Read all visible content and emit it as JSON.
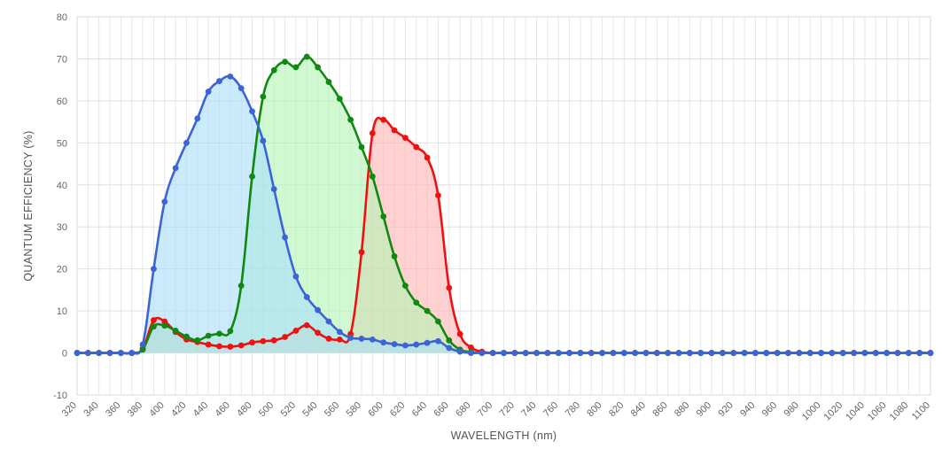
{
  "chart_data": {
    "type": "area",
    "xlabel": "WAVELENGTH (nm)",
    "ylabel": "QUANTUM EFFICIENCY (%)",
    "xlim": [
      320,
      1100
    ],
    "ylim": [
      -10,
      80
    ],
    "x_ticks": [
      320,
      340,
      360,
      380,
      400,
      420,
      440,
      460,
      480,
      500,
      520,
      540,
      560,
      580,
      600,
      620,
      640,
      660,
      680,
      700,
      720,
      740,
      760,
      780,
      800,
      820,
      840,
      860,
      880,
      900,
      920,
      940,
      960,
      980,
      1000,
      1020,
      1040,
      1060,
      1080,
      1100
    ],
    "y_ticks": [
      -10,
      0,
      10,
      20,
      30,
      40,
      50,
      60,
      70,
      80
    ],
    "grid": true,
    "series": [
      {
        "color": "#ee1111",
        "fill": "#ffb3b3",
        "points": [
          [
            320,
            0
          ],
          [
            330,
            0
          ],
          [
            340,
            0
          ],
          [
            350,
            0
          ],
          [
            360,
            0
          ],
          [
            370,
            0
          ],
          [
            380,
            1
          ],
          [
            390,
            7.8
          ],
          [
            400,
            7.5
          ],
          [
            410,
            5
          ],
          [
            420,
            3.2
          ],
          [
            430,
            2.6
          ],
          [
            440,
            2
          ],
          [
            450,
            1.6
          ],
          [
            460,
            1.5
          ],
          [
            470,
            1.8
          ],
          [
            480,
            2.5
          ],
          [
            490,
            2.8
          ],
          [
            500,
            3
          ],
          [
            510,
            3.8
          ],
          [
            520,
            5.3
          ],
          [
            530,
            6.6
          ],
          [
            540,
            4.8
          ],
          [
            550,
            3.4
          ],
          [
            560,
            3.2
          ],
          [
            570,
            4.5
          ],
          [
            580,
            24
          ],
          [
            590,
            52.3
          ],
          [
            600,
            55.5
          ],
          [
            610,
            53
          ],
          [
            620,
            51.2
          ],
          [
            630,
            49
          ],
          [
            640,
            46.5
          ],
          [
            650,
            37.5
          ],
          [
            660,
            15.5
          ],
          [
            670,
            4.5
          ],
          [
            680,
            1.3
          ],
          [
            690,
            0.3
          ],
          [
            700,
            0
          ],
          [
            710,
            0
          ],
          [
            720,
            0
          ],
          [
            730,
            0
          ],
          [
            740,
            0
          ],
          [
            750,
            0
          ],
          [
            760,
            0
          ],
          [
            770,
            0
          ],
          [
            780,
            0
          ],
          [
            790,
            0
          ],
          [
            800,
            0
          ],
          [
            810,
            0
          ],
          [
            820,
            0
          ],
          [
            830,
            0
          ],
          [
            840,
            0
          ],
          [
            850,
            0
          ],
          [
            860,
            0
          ],
          [
            870,
            0
          ],
          [
            880,
            0
          ],
          [
            890,
            0
          ],
          [
            900,
            0
          ],
          [
            910,
            0
          ],
          [
            920,
            0
          ],
          [
            930,
            0
          ],
          [
            940,
            0
          ],
          [
            950,
            0
          ],
          [
            960,
            0
          ],
          [
            970,
            0
          ],
          [
            980,
            0
          ],
          [
            990,
            0
          ],
          [
            1000,
            0
          ],
          [
            1010,
            0
          ],
          [
            1020,
            0
          ],
          [
            1030,
            0
          ],
          [
            1040,
            0
          ],
          [
            1050,
            0
          ],
          [
            1060,
            0
          ],
          [
            1070,
            0
          ],
          [
            1080,
            0
          ],
          [
            1090,
            0
          ],
          [
            1100,
            0
          ]
        ]
      },
      {
        "color": "#118811",
        "fill": "#b3f5b3",
        "points": [
          [
            320,
            0
          ],
          [
            330,
            0
          ],
          [
            340,
            0
          ],
          [
            350,
            0
          ],
          [
            360,
            0
          ],
          [
            370,
            0
          ],
          [
            380,
            0.8
          ],
          [
            390,
            6.3
          ],
          [
            400,
            6.5
          ],
          [
            410,
            5.3
          ],
          [
            420,
            3.9
          ],
          [
            430,
            3
          ],
          [
            440,
            4.1
          ],
          [
            450,
            4.6
          ],
          [
            460,
            5.2
          ],
          [
            470,
            16
          ],
          [
            480,
            42
          ],
          [
            490,
            61
          ],
          [
            500,
            67.3
          ],
          [
            510,
            69.3
          ],
          [
            520,
            68
          ],
          [
            530,
            70.5
          ],
          [
            540,
            68
          ],
          [
            550,
            64.5
          ],
          [
            560,
            60.5
          ],
          [
            570,
            55.5
          ],
          [
            580,
            49
          ],
          [
            590,
            42
          ],
          [
            600,
            32.5
          ],
          [
            610,
            23
          ],
          [
            620,
            16
          ],
          [
            630,
            12
          ],
          [
            640,
            10
          ],
          [
            650,
            7.5
          ],
          [
            660,
            3
          ],
          [
            670,
            0.8
          ],
          [
            680,
            0.2
          ],
          [
            690,
            0
          ],
          [
            700,
            0
          ],
          [
            710,
            0
          ],
          [
            720,
            0
          ],
          [
            730,
            0
          ],
          [
            740,
            0
          ],
          [
            750,
            0
          ],
          [
            760,
            0
          ],
          [
            770,
            0
          ],
          [
            780,
            0
          ],
          [
            790,
            0
          ],
          [
            800,
            0
          ],
          [
            810,
            0
          ],
          [
            820,
            0
          ],
          [
            830,
            0
          ],
          [
            840,
            0
          ],
          [
            850,
            0
          ],
          [
            860,
            0
          ],
          [
            870,
            0
          ],
          [
            880,
            0
          ],
          [
            890,
            0
          ],
          [
            900,
            0
          ],
          [
            910,
            0
          ],
          [
            920,
            0
          ],
          [
            930,
            0
          ],
          [
            940,
            0
          ],
          [
            950,
            0
          ],
          [
            960,
            0
          ],
          [
            970,
            0
          ],
          [
            980,
            0
          ],
          [
            990,
            0
          ],
          [
            1000,
            0
          ],
          [
            1010,
            0
          ],
          [
            1020,
            0
          ],
          [
            1030,
            0
          ],
          [
            1040,
            0
          ],
          [
            1050,
            0
          ],
          [
            1060,
            0
          ],
          [
            1070,
            0
          ],
          [
            1080,
            0
          ],
          [
            1090,
            0
          ],
          [
            1100,
            0
          ]
        ]
      },
      {
        "color": "#3b64d6",
        "fill": "#a9ddfa",
        "points": [
          [
            320,
            0
          ],
          [
            330,
            0
          ],
          [
            340,
            0
          ],
          [
            350,
            0
          ],
          [
            360,
            0
          ],
          [
            370,
            0
          ],
          [
            380,
            2
          ],
          [
            390,
            20
          ],
          [
            400,
            36
          ],
          [
            410,
            44
          ],
          [
            420,
            50
          ],
          [
            430,
            55.8
          ],
          [
            440,
            62.2
          ],
          [
            450,
            64.7
          ],
          [
            460,
            65.8
          ],
          [
            470,
            63
          ],
          [
            480,
            57.5
          ],
          [
            490,
            50.5
          ],
          [
            500,
            39
          ],
          [
            510,
            27.5
          ],
          [
            520,
            18.2
          ],
          [
            530,
            13.3
          ],
          [
            540,
            10.2
          ],
          [
            550,
            7.5
          ],
          [
            560,
            5
          ],
          [
            570,
            3.6
          ],
          [
            580,
            3.4
          ],
          [
            590,
            3.2
          ],
          [
            600,
            2.5
          ],
          [
            610,
            2.1
          ],
          [
            620,
            1.8
          ],
          [
            630,
            2
          ],
          [
            640,
            2.4
          ],
          [
            650,
            2.8
          ],
          [
            660,
            1.2
          ],
          [
            670,
            0.3
          ],
          [
            680,
            0
          ],
          [
            690,
            0
          ],
          [
            700,
            0
          ],
          [
            710,
            0
          ],
          [
            720,
            0
          ],
          [
            730,
            0
          ],
          [
            740,
            0
          ],
          [
            750,
            0
          ],
          [
            760,
            0
          ],
          [
            770,
            0
          ],
          [
            780,
            0
          ],
          [
            790,
            0
          ],
          [
            800,
            0
          ],
          [
            810,
            0
          ],
          [
            820,
            0
          ],
          [
            830,
            0
          ],
          [
            840,
            0
          ],
          [
            850,
            0
          ],
          [
            860,
            0
          ],
          [
            870,
            0
          ],
          [
            880,
            0
          ],
          [
            890,
            0
          ],
          [
            900,
            0
          ],
          [
            910,
            0
          ],
          [
            920,
            0
          ],
          [
            930,
            0
          ],
          [
            940,
            0
          ],
          [
            950,
            0
          ],
          [
            960,
            0
          ],
          [
            970,
            0
          ],
          [
            980,
            0
          ],
          [
            990,
            0
          ],
          [
            1000,
            0
          ],
          [
            1010,
            0
          ],
          [
            1020,
            0
          ],
          [
            1030,
            0
          ],
          [
            1040,
            0
          ],
          [
            1050,
            0
          ],
          [
            1060,
            0
          ],
          [
            1070,
            0
          ],
          [
            1080,
            0
          ],
          [
            1090,
            0
          ],
          [
            1100,
            0
          ]
        ]
      }
    ]
  }
}
